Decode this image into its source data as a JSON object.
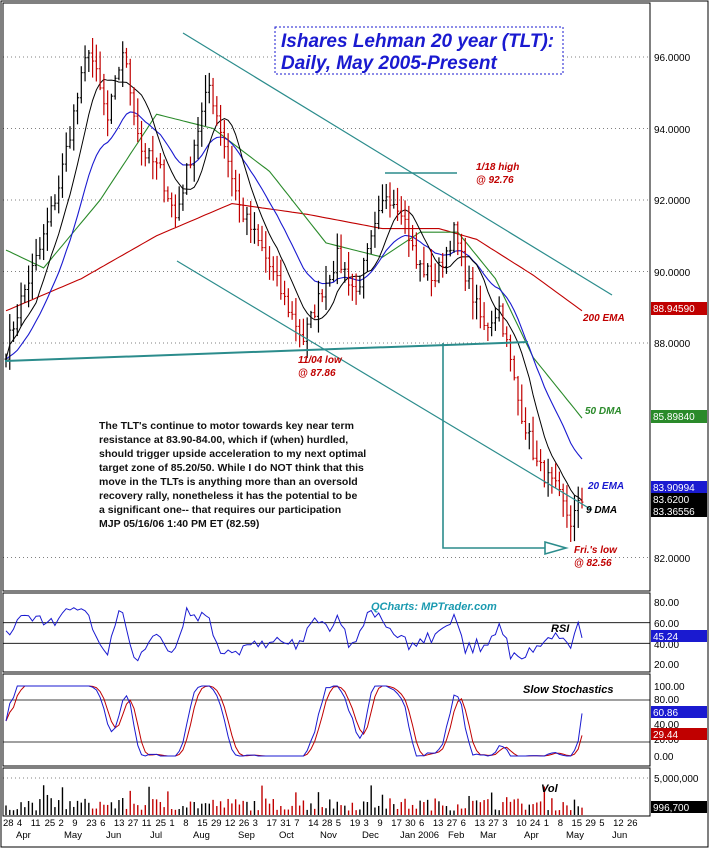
{
  "title_lines": [
    "Ishares Lehman 20 year (TLT):",
    "Daily, May 2005-Present"
  ],
  "watermark": "QCharts: MPTrader.com",
  "commentary": [
    "The TLT's continue to motor towards key near term",
    "resistance at 83.90-84.00, which if (when) hurdled,",
    "should trigger upside acceleration to my next optimal",
    "target zone of 85.20/50. While I do NOT think that this",
    "move in the TLTs is anything more than an oversold",
    "recovery rally, nonetheless it has the potential to be",
    "a significant one-- that requires our participation",
    "MJP 05/16/06 1:40 PM ET  (82.59)"
  ],
  "annotations": {
    "high_label": "1/18 high",
    "high_value": "@ 92.76",
    "low_label": "11/04 low",
    "low_value": "@ 87.86",
    "fri_label": "Fri.'s low",
    "fri_value": "@ 82.56",
    "ema200": "200 EMA",
    "dma50": "50 DMA",
    "ema20": "20 EMA",
    "dma9": "9 DMA"
  },
  "price_axis": {
    "ticks": [
      "96.0000",
      "94.0000",
      "92.0000",
      "90.0000",
      "88.0000",
      "82.0000"
    ],
    "badges": [
      {
        "text": "88.94590",
        "color": "#c00000"
      },
      {
        "text": "85.89840",
        "color": "#2a8a2a"
      },
      {
        "text": "83.90994",
        "color": "#1a1ad0"
      },
      {
        "text": "83.6200",
        "color": "#000000"
      },
      {
        "text": "83.36556",
        "color": "#000000"
      }
    ]
  },
  "rsi": {
    "label": "RSI",
    "ticks": [
      "80.00",
      "60.00",
      "40.00",
      "20.00"
    ],
    "badge": "45.24",
    "badge_color": "#1a1ad0"
  },
  "stoch": {
    "label": "Slow Stochastics",
    "ticks": [
      "100.00",
      "80.00",
      "40.00",
      "20.00",
      "0.00"
    ],
    "badges": [
      {
        "text": "60.86",
        "color": "#1a1ad0"
      },
      {
        "text": "29.44",
        "color": "#c00000"
      }
    ]
  },
  "vol": {
    "label": "Vol",
    "ticks": [
      "5,000,000"
    ],
    "badge": "996,700"
  },
  "x_axis": {
    "day_labels": [
      "28",
      "4",
      "11",
      "25",
      "2",
      "9",
      "23",
      "6",
      "13",
      "27",
      "11",
      "25",
      "1",
      "8",
      "15",
      "29",
      "12",
      "26",
      "3",
      "17",
      "31",
      "7",
      "14",
      "28",
      "5",
      "19",
      "3",
      "9",
      "17",
      "30",
      "6",
      "13",
      "27",
      "6",
      "13",
      "27",
      "3",
      "10",
      "24",
      "1",
      "8",
      "15",
      "29",
      "5",
      "12",
      "26"
    ],
    "month_labels": [
      "Apr",
      "May",
      "Jun",
      "Jul",
      "Aug",
      "Sep",
      "Oct",
      "Nov",
      "Dec",
      "Jan 2006",
      "Feb",
      "Mar",
      "Apr",
      "May",
      "Jun"
    ]
  },
  "chart_data": {
    "type": "candlestick",
    "instrument": "TLT",
    "ylim": [
      81.5,
      97.2
    ],
    "levels": {
      "high_1_18": 92.76,
      "low_11_04": 87.86,
      "low_friday": 82.56,
      "ema200": 88.9459,
      "dma50": 85.8984,
      "ema20": 83.90994,
      "last": 83.62,
      "dma9": 83.36556
    },
    "close_path": [
      {
        "i": 0,
        "v": 87.8
      },
      {
        "i": 4,
        "v": 89.2
      },
      {
        "i": 9,
        "v": 90.6
      },
      {
        "i": 14,
        "v": 92.4
      },
      {
        "i": 18,
        "v": 94.4
      },
      {
        "i": 22,
        "v": 96.3
      },
      {
        "i": 27,
        "v": 94.2
      },
      {
        "i": 31,
        "v": 96.2
      },
      {
        "i": 36,
        "v": 93.4
      },
      {
        "i": 41,
        "v": 92.8
      },
      {
        "i": 45,
        "v": 91.5
      },
      {
        "i": 49,
        "v": 93.2
      },
      {
        "i": 54,
        "v": 95.2
      },
      {
        "i": 57,
        "v": 94.0
      },
      {
        "i": 62,
        "v": 91.8
      },
      {
        "i": 68,
        "v": 90.6
      },
      {
        "i": 74,
        "v": 89.2
      },
      {
        "i": 79,
        "v": 88.1
      },
      {
        "i": 84,
        "v": 89.5
      },
      {
        "i": 88,
        "v": 90.4
      },
      {
        "i": 93,
        "v": 89.4
      },
      {
        "i": 97,
        "v": 90.8
      },
      {
        "i": 101,
        "v": 92.2
      },
      {
        "i": 105,
        "v": 91.8
      },
      {
        "i": 109,
        "v": 90.2
      },
      {
        "i": 114,
        "v": 89.8
      },
      {
        "i": 119,
        "v": 91.1
      },
      {
        "i": 123,
        "v": 89.6
      },
      {
        "i": 127,
        "v": 88.4
      },
      {
        "i": 131,
        "v": 89.0
      },
      {
        "i": 136,
        "v": 86.4
      },
      {
        "i": 141,
        "v": 84.6
      },
      {
        "i": 146,
        "v": 83.9
      },
      {
        "i": 150,
        "v": 83.0
      },
      {
        "i": 153,
        "v": 83.6
      }
    ],
    "ema200_path": [
      {
        "i": 0,
        "v": 88.9
      },
      {
        "i": 20,
        "v": 89.8
      },
      {
        "i": 40,
        "v": 91.0
      },
      {
        "i": 60,
        "v": 91.9
      },
      {
        "i": 80,
        "v": 91.6
      },
      {
        "i": 100,
        "v": 91.2
      },
      {
        "i": 115,
        "v": 91.2
      },
      {
        "i": 125,
        "v": 90.9
      },
      {
        "i": 140,
        "v": 89.9
      },
      {
        "i": 153,
        "v": 88.9
      }
    ],
    "dma50_path": [
      {
        "i": 0,
        "v": 90.6
      },
      {
        "i": 10,
        "v": 90.1
      },
      {
        "i": 25,
        "v": 92.0
      },
      {
        "i": 40,
        "v": 94.4
      },
      {
        "i": 55,
        "v": 94.0
      },
      {
        "i": 70,
        "v": 92.8
      },
      {
        "i": 85,
        "v": 90.8
      },
      {
        "i": 100,
        "v": 90.4
      },
      {
        "i": 110,
        "v": 91.1
      },
      {
        "i": 120,
        "v": 91.1
      },
      {
        "i": 130,
        "v": 89.8
      },
      {
        "i": 140,
        "v": 87.6
      },
      {
        "i": 153,
        "v": 85.9
      }
    ],
    "rsi_ylim": [
      20,
      80
    ],
    "stoch_ylim": [
      0,
      100
    ],
    "vol_ylim": [
      0,
      5000000
    ],
    "last_values": {
      "rsi": 45.24,
      "stoch_k": 60.86,
      "stoch_d": 29.44,
      "volume": 996700
    }
  },
  "colors": {
    "red": "#c00000",
    "blue": "#1a1ad0",
    "green": "#2a8a2a",
    "channel": "#2b8c8c",
    "grid": "#000000"
  }
}
